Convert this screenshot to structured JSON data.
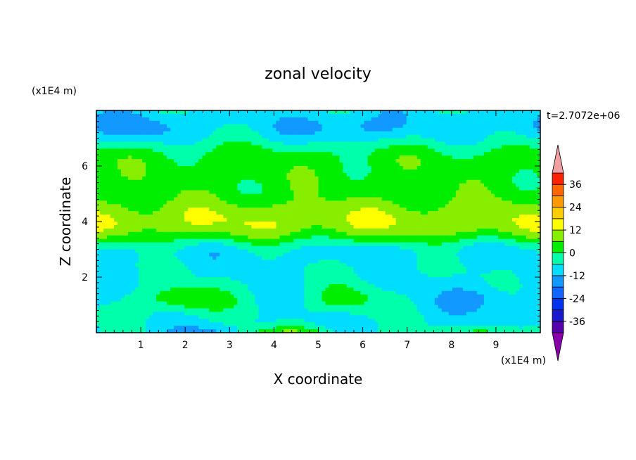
{
  "chart_data": {
    "type": "heatmap",
    "title": "zonal velocity",
    "xlabel": "X coordinate",
    "ylabel": "Z coordinate",
    "x_units": "(x1E4 m)",
    "y_units": "(x1E4 m)",
    "time_label": "t=2.7072e+06",
    "xlim": [
      0,
      10
    ],
    "ylim": [
      0,
      8
    ],
    "x_ticks": [
      1,
      2,
      3,
      4,
      5,
      6,
      7,
      8,
      9
    ],
    "y_ticks": [
      2,
      4,
      6
    ],
    "colorbar": {
      "levels": [
        -42,
        -36,
        -30,
        -24,
        -18,
        -12,
        -6,
        0,
        6,
        12,
        18,
        24,
        30,
        36,
        42
      ],
      "tick_labels": [
        36,
        24,
        12,
        0,
        -12,
        -24,
        -36
      ],
      "colors": [
        "#8800aa",
        "#5500aa",
        "#1a1acc",
        "#0033ee",
        "#1166ff",
        "#1199ff",
        "#00ddff",
        "#00ffaa",
        "#00ee00",
        "#88ee00",
        "#ffff00",
        "#ffcc00",
        "#ff9900",
        "#ff6600",
        "#ff2200",
        "#f0a0a0"
      ],
      "extend": "both"
    }
  }
}
